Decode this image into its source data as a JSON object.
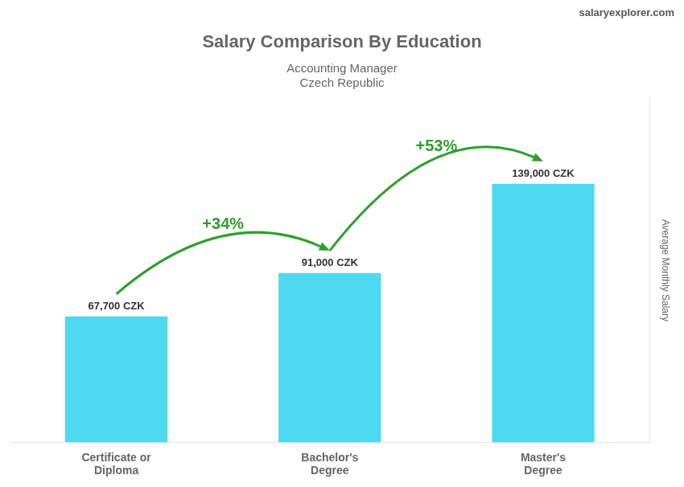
{
  "chart_data": {
    "type": "bar",
    "title": "Salary Comparison By Education",
    "subtitle": [
      "Accounting Manager",
      "Czech Republic"
    ],
    "ylabel": "Average Monthly Salary",
    "categories": [
      "Certificate or\nDiploma",
      "Bachelor's\nDegree",
      "Master's\nDegree"
    ],
    "values": [
      67700,
      91000,
      139000
    ],
    "value_labels": [
      "67,700 CZK",
      "91,000 CZK",
      "139,000 CZK"
    ],
    "data_labels": true,
    "color": "#4dd9f0",
    "ylim": [
      0,
      185000
    ],
    "tick_labels": "x",
    "grid": false,
    "annotations": [
      {
        "text": "+34%",
        "from": "Certificate or\nDiploma",
        "to": "Bachelor's\nDegree"
      },
      {
        "text": "+53%",
        "from": "Bachelor's\nDegree",
        "to": "Master's\nDegree"
      },
      {
        "text": "salaryexplorer.com"
      }
    ]
  }
}
